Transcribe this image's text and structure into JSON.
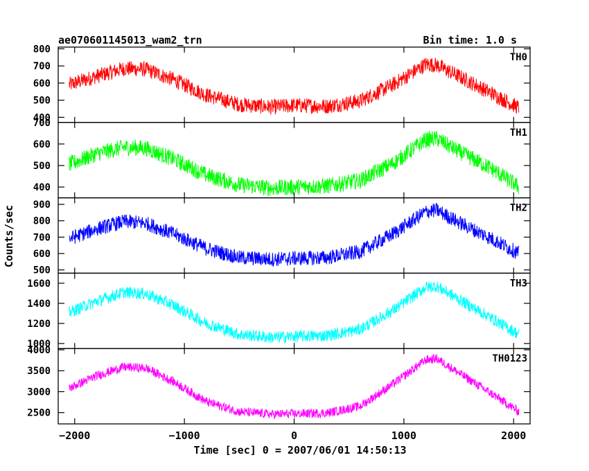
{
  "header": {
    "title": "ae070601145013_wam2_trn",
    "bin_time": "Bin time: 1.0 s"
  },
  "chart_data": {
    "type": "line",
    "xlabel": "Time [sec] 0 = 2007/06/01 14:50:13",
    "ylabel": "Counts/sec",
    "xlim": [
      -2150,
      2150
    ],
    "x_ticks": [
      -2000,
      -1000,
      0,
      1000,
      2000
    ],
    "x_tick_labels": [
      "−2000",
      "−1000",
      "0",
      "1000",
      "2000"
    ],
    "grid": false,
    "panels": [
      {
        "name": "TH0",
        "color": "#ff0000",
        "ylim": [
          370,
          810
        ],
        "y_ticks": [
          400,
          500,
          600,
          700,
          800
        ],
        "y_tick_labels": [
          "400",
          "500",
          "600",
          "700",
          "800"
        ],
        "x": [
          -2050,
          -1800,
          -1550,
          -1350,
          -1100,
          -800,
          -500,
          -200,
          0,
          300,
          600,
          900,
          1200,
          1300,
          1500,
          1800,
          2050
        ],
        "y": [
          590,
          640,
          685,
          680,
          620,
          530,
          475,
          460,
          470,
          465,
          495,
          590,
          710,
          705,
          640,
          540,
          455
        ],
        "noise": 45
      },
      {
        "name": "TH1",
        "color": "#00ff00",
        "ylim": [
          350,
          700
        ],
        "y_ticks": [
          400,
          500,
          600,
          700
        ],
        "y_tick_labels": [
          "400",
          "500",
          "600",
          "700"
        ],
        "x": [
          -2050,
          -1800,
          -1550,
          -1350,
          -1100,
          -800,
          -500,
          -200,
          0,
          300,
          600,
          900,
          1200,
          1300,
          1500,
          1800,
          2050
        ],
        "y": [
          505,
          555,
          585,
          580,
          530,
          455,
          410,
          395,
          400,
          405,
          430,
          510,
          620,
          625,
          565,
          485,
          400
        ],
        "noise": 38
      },
      {
        "name": "TH2",
        "color": "#0000ff",
        "ylim": [
          480,
          940
        ],
        "y_ticks": [
          500,
          600,
          700,
          800,
          900
        ],
        "y_tick_labels": [
          "500",
          "600",
          "700",
          "800",
          "900"
        ],
        "x": [
          -2050,
          -1800,
          -1550,
          -1350,
          -1100,
          -800,
          -500,
          -200,
          0,
          300,
          600,
          900,
          1200,
          1300,
          1500,
          1800,
          2050
        ],
        "y": [
          690,
          750,
          795,
          785,
          720,
          630,
          575,
          565,
          570,
          575,
          610,
          720,
          855,
          865,
          790,
          690,
          600
        ],
        "noise": 45
      },
      {
        "name": "TH3",
        "color": "#00ffff",
        "ylim": [
          950,
          1700
        ],
        "y_ticks": [
          1000,
          1200,
          1400,
          1600
        ],
        "y_tick_labels": [
          "1000",
          "1200",
          "1400",
          "1600"
        ],
        "x": [
          -2050,
          -1800,
          -1550,
          -1350,
          -1100,
          -800,
          -500,
          -200,
          0,
          300,
          600,
          900,
          1200,
          1300,
          1500,
          1800,
          2050
        ],
        "y": [
          1310,
          1420,
          1510,
          1495,
          1380,
          1200,
          1090,
          1060,
          1070,
          1080,
          1140,
          1330,
          1560,
          1570,
          1440,
          1250,
          1090
        ],
        "noise": 60
      },
      {
        "name": "TH0123",
        "color": "#ff00ff",
        "ylim": [
          2230,
          4030
        ],
        "y_ticks": [
          2500,
          3000,
          3500,
          4000
        ],
        "y_tick_labels": [
          "2500",
          "3000",
          "3500",
          "4000"
        ],
        "x": [
          -2050,
          -1800,
          -1550,
          -1350,
          -1100,
          -800,
          -500,
          -200,
          0,
          300,
          600,
          900,
          1200,
          1300,
          1500,
          1800,
          2050
        ],
        "y": [
          3080,
          3380,
          3590,
          3560,
          3240,
          2760,
          2520,
          2460,
          2470,
          2490,
          2650,
          3180,
          3760,
          3790,
          3450,
          2950,
          2520
        ],
        "noise": 110
      }
    ]
  }
}
